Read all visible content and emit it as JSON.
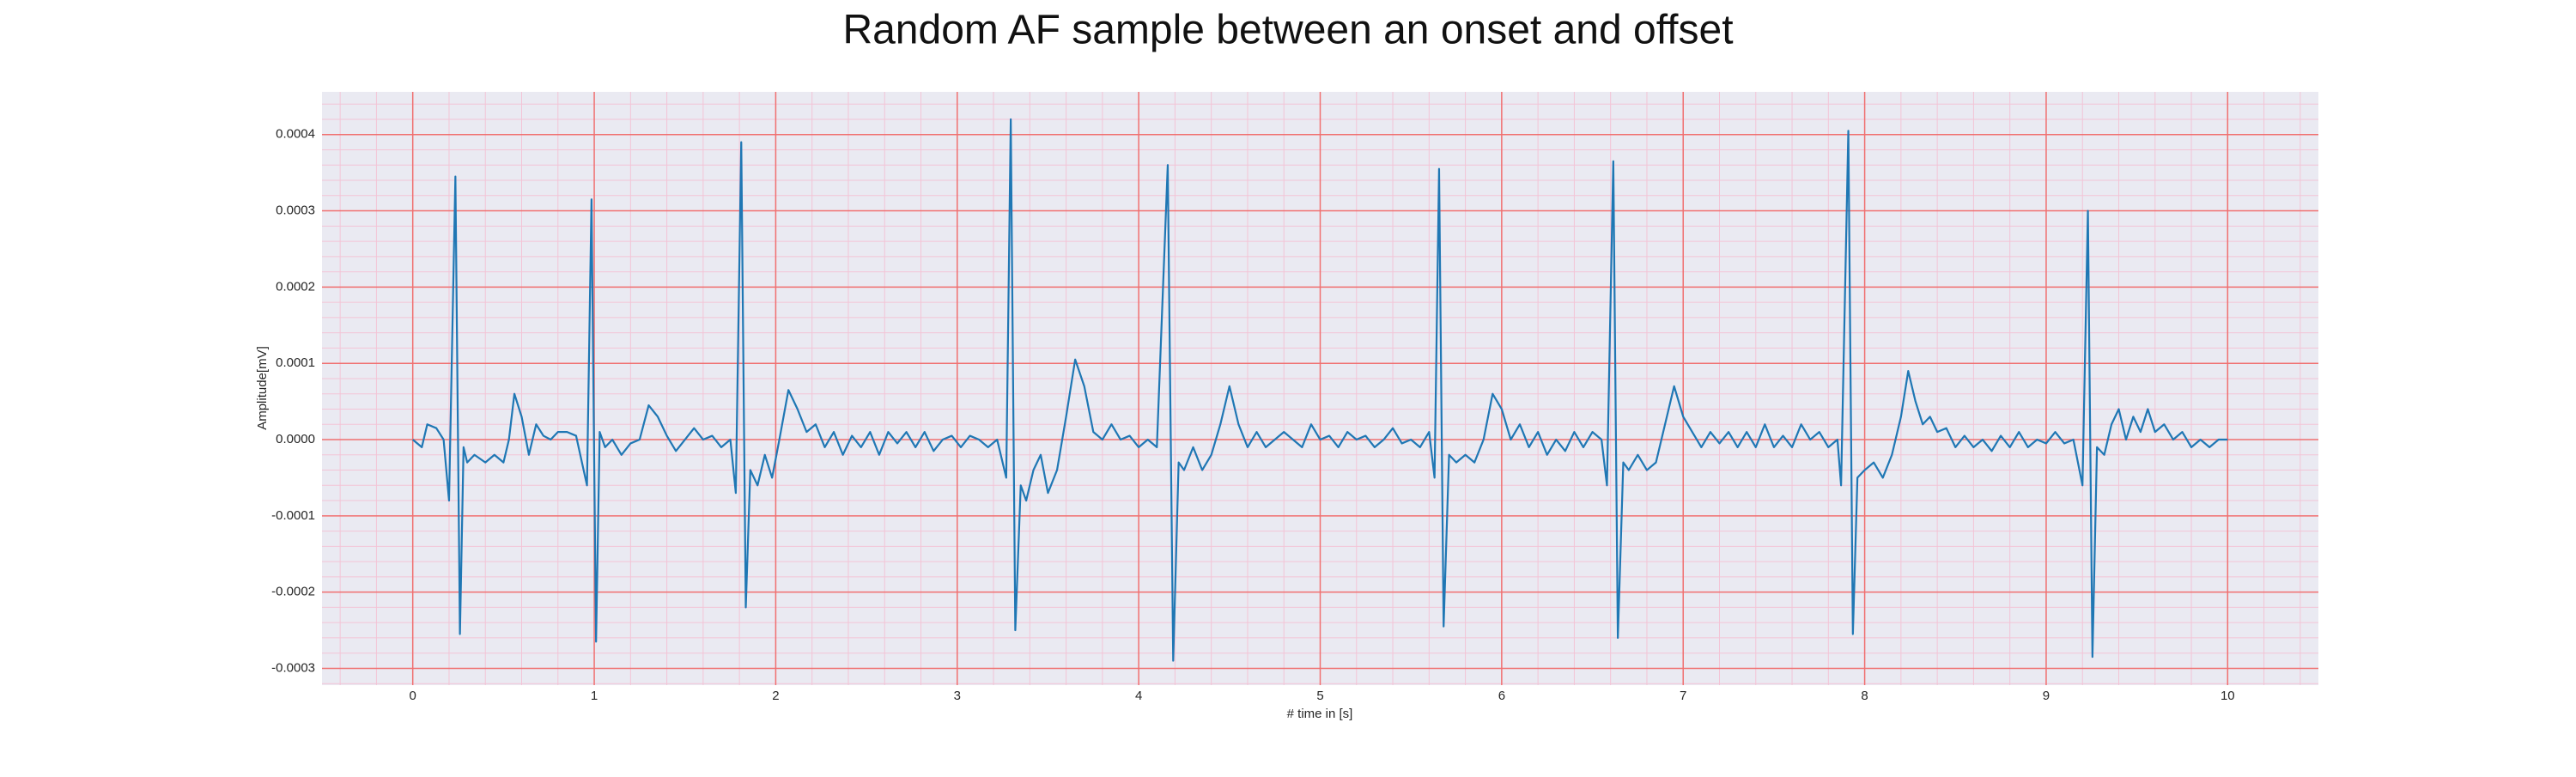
{
  "chart_data": {
    "type": "line",
    "title": "Random AF sample between an onset and offset",
    "x_label": "# time in [s]",
    "y_label": "Amplitude[mV]",
    "xlim": [
      -0.5,
      10.5
    ],
    "ylim": [
      -0.000322,
      0.000456
    ],
    "xticks": [
      0,
      1,
      2,
      3,
      4,
      5,
      6,
      7,
      8,
      9,
      10
    ],
    "yticks": [
      -0.0003,
      -0.0002,
      -0.0001,
      {
        "value": 0,
        "label": "0.0000"
      },
      0.0001,
      0.0002,
      0.0003,
      0.0004
    ],
    "grid": true,
    "minor_grid": true,
    "background": "#eaeaf2",
    "grid_color": "#f07070",
    "minor_grid_color": "#f3c4d6",
    "series": [
      {
        "color": "#1f77b4",
        "x": [
          0,
          0.05,
          0.08,
          0.13,
          0.17,
          0.2,
          0.235,
          0.26,
          0.28,
          0.3,
          0.34,
          0.4,
          0.45,
          0.5,
          0.53,
          0.56,
          0.6,
          0.64,
          0.68,
          0.72,
          0.76,
          0.8,
          0.85,
          0.9,
          0.96,
          0.985,
          1.01,
          1.03,
          1.06,
          1.1,
          1.15,
          1.2,
          1.25,
          1.3,
          1.35,
          1.4,
          1.45,
          1.5,
          1.55,
          1.6,
          1.65,
          1.7,
          1.75,
          1.78,
          1.81,
          1.835,
          1.86,
          1.9,
          1.94,
          1.98,
          2.02,
          2.07,
          2.12,
          2.17,
          2.22,
          2.27,
          2.32,
          2.37,
          2.42,
          2.47,
          2.52,
          2.57,
          2.62,
          2.67,
          2.72,
          2.77,
          2.82,
          2.87,
          2.92,
          2.97,
          3.02,
          3.07,
          3.12,
          3.17,
          3.22,
          3.27,
          3.295,
          3.32,
          3.35,
          3.38,
          3.42,
          3.46,
          3.5,
          3.55,
          3.6,
          3.65,
          3.7,
          3.75,
          3.8,
          3.85,
          3.9,
          3.95,
          4.0,
          4.05,
          4.1,
          4.16,
          4.19,
          4.22,
          4.25,
          4.3,
          4.35,
          4.4,
          4.45,
          4.5,
          4.55,
          4.6,
          4.65,
          4.7,
          4.75,
          4.8,
          4.85,
          4.9,
          4.95,
          5.0,
          5.05,
          5.1,
          5.15,
          5.2,
          5.25,
          5.3,
          5.35,
          5.4,
          5.45,
          5.5,
          5.55,
          5.6,
          5.63,
          5.655,
          5.68,
          5.71,
          5.75,
          5.8,
          5.85,
          5.9,
          5.95,
          6.0,
          6.05,
          6.1,
          6.15,
          6.2,
          6.25,
          6.3,
          6.35,
          6.4,
          6.45,
          6.5,
          6.55,
          6.58,
          6.615,
          6.64,
          6.67,
          6.7,
          6.75,
          6.8,
          6.85,
          6.9,
          6.95,
          7.0,
          7.05,
          7.1,
          7.15,
          7.2,
          7.25,
          7.3,
          7.35,
          7.4,
          7.45,
          7.5,
          7.55,
          7.6,
          7.65,
          7.7,
          7.75,
          7.8,
          7.85,
          7.87,
          7.91,
          7.935,
          7.96,
          8.0,
          8.05,
          8.1,
          8.15,
          8.2,
          8.24,
          8.28,
          8.32,
          8.36,
          8.4,
          8.45,
          8.5,
          8.55,
          8.6,
          8.65,
          8.7,
          8.75,
          8.8,
          8.85,
          8.9,
          8.95,
          9.0,
          9.05,
          9.1,
          9.15,
          9.2,
          9.23,
          9.255,
          9.28,
          9.32,
          9.36,
          9.4,
          9.44,
          9.48,
          9.52,
          9.56,
          9.6,
          9.65,
          9.7,
          9.75,
          9.8,
          9.85,
          9.9,
          9.95,
          10.0
        ],
        "values": [
          0,
          -1e-05,
          2e-05,
          1.5e-05,
          0,
          -8e-05,
          0.000345,
          -0.000255,
          -1e-05,
          -3e-05,
          -2e-05,
          -3e-05,
          -2e-05,
          -3e-05,
          0,
          6e-05,
          3e-05,
          -2e-05,
          2e-05,
          5e-06,
          0,
          1e-05,
          1e-05,
          5e-06,
          -6e-05,
          0.000315,
          -0.000265,
          1e-05,
          -1e-05,
          0,
          -2e-05,
          -5e-06,
          0,
          4.5e-05,
          3e-05,
          5e-06,
          -1.5e-05,
          0,
          1.5e-05,
          0,
          5e-06,
          -1e-05,
          0,
          -7e-05,
          0.00039,
          -0.00022,
          -4e-05,
          -6e-05,
          -2e-05,
          -5e-05,
          0,
          6.5e-05,
          4e-05,
          1e-05,
          2e-05,
          -1e-05,
          1e-05,
          -2e-05,
          5e-06,
          -1e-05,
          1e-05,
          -2e-05,
          1e-05,
          -5e-06,
          1e-05,
          -1e-05,
          1e-05,
          -1.5e-05,
          0,
          5e-06,
          -1e-05,
          5e-06,
          0,
          -1e-05,
          0,
          -5e-05,
          0.00042,
          -0.00025,
          -6e-05,
          -8e-05,
          -4e-05,
          -2e-05,
          -7e-05,
          -4e-05,
          3e-05,
          0.000105,
          7e-05,
          1e-05,
          0,
          2e-05,
          0,
          5e-06,
          -1e-05,
          0,
          -1e-05,
          0.00036,
          -0.00029,
          -3e-05,
          -4e-05,
          -1e-05,
          -4e-05,
          -2e-05,
          2e-05,
          7e-05,
          2e-05,
          -1e-05,
          1e-05,
          -1e-05,
          0,
          1e-05,
          0,
          -1e-05,
          2e-05,
          0,
          5e-06,
          -1e-05,
          1e-05,
          0,
          5e-06,
          -1e-05,
          0,
          1.5e-05,
          -5e-06,
          0,
          -1e-05,
          1e-05,
          -5e-05,
          0.000355,
          -0.000245,
          -2e-05,
          -3e-05,
          -2e-05,
          -3e-05,
          0,
          6e-05,
          4e-05,
          0,
          2e-05,
          -1e-05,
          1e-05,
          -2e-05,
          0,
          -1.5e-05,
          1e-05,
          -1e-05,
          1e-05,
          0,
          -6e-05,
          0.000365,
          -0.00026,
          -3e-05,
          -4e-05,
          -2e-05,
          -4e-05,
          -3e-05,
          2e-05,
          7e-05,
          3e-05,
          1e-05,
          -1e-05,
          1e-05,
          -5e-06,
          1e-05,
          -1e-05,
          1e-05,
          -1e-05,
          2e-05,
          -1e-05,
          5e-06,
          -1e-05,
          2e-05,
          0,
          1e-05,
          -1e-05,
          0,
          -6e-05,
          0.000405,
          -0.000255,
          -5e-05,
          -4e-05,
          -3e-05,
          -5e-05,
          -2e-05,
          3e-05,
          9e-05,
          5e-05,
          2e-05,
          3e-05,
          1e-05,
          1.5e-05,
          -1e-05,
          5e-06,
          -1e-05,
          0,
          -1.5e-05,
          5e-06,
          -1e-05,
          1e-05,
          -1e-05,
          0,
          -5e-06,
          1e-05,
          -5e-06,
          0,
          -6e-05,
          0.0003,
          -0.000285,
          -1e-05,
          -2e-05,
          2e-05,
          4e-05,
          0,
          3e-05,
          1e-05,
          4e-05,
          1e-05,
          2e-05,
          0,
          1e-05,
          -1e-05,
          0,
          -1e-05,
          0,
          0
        ]
      }
    ]
  }
}
